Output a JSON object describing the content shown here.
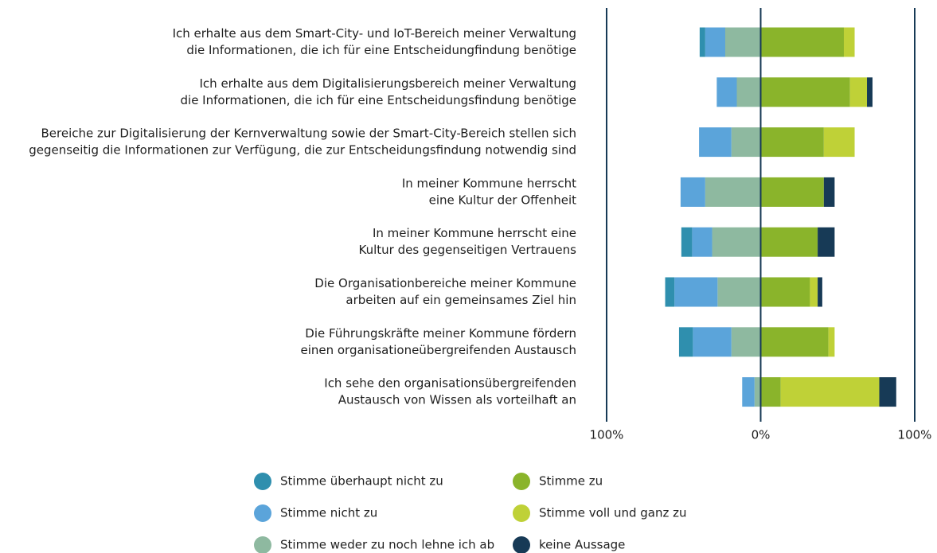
{
  "chart_data": {
    "type": "diverging_bar",
    "categories": [
      [
        "Ich erhalte aus dem Smart-City- und IoT-Bereich meiner Verwaltung",
        "die Informationen, die ich für eine Entscheidungfindung benötige"
      ],
      [
        "Ich erhalte aus dem Digitalisierungsbereich meiner Verwaltung",
        "die Informationen, die ich für eine Entscheidungsfindung benötige"
      ],
      [
        "Bereiche zur Digitalisierung der Kernverwaltung sowie der Smart-City-Bereich stellen sich",
        "gegenseitig die Informationen zur Verfügung, die zur Entscheidungsfindung notwendig sind"
      ],
      [
        "In meiner Kommune herrscht",
        "eine Kultur der Offenheit"
      ],
      [
        "In meiner Kommune herrscht eine",
        "Kultur des gegenseitigen Vertrauens"
      ],
      [
        "Die Organisationbereiche meiner Kommune",
        "arbeiten auf ein gemeinsames Ziel hin"
      ],
      [
        "Die Führungskräfte meiner Kommune fördern",
        "einen organisationeübergreifenden Austausch"
      ],
      [
        "Ich sehe den organisationsübergreifenden",
        "Austausch von Wissen als vorteilhaft an"
      ]
    ],
    "series": [
      {
        "name": "Stimme überhaupt nicht zu",
        "color": "#2f8fae",
        "values": [
          -3.6,
          0,
          0,
          0,
          -7,
          -6,
          -9,
          0
        ]
      },
      {
        "name": "Stimme nicht zu",
        "color": "#5ba4da",
        "values": [
          -13,
          -13,
          -21,
          -16,
          -13,
          -28,
          -25,
          -8
        ]
      },
      {
        "name": "Stimme weder zu noch lehne ich ab",
        "color": "#8eb9a0",
        "values": [
          -23,
          -15.5,
          -19,
          -36,
          -31.5,
          -28,
          -19,
          -4
        ]
      },
      {
        "name": "Stimme zu",
        "color": "#8ab42b",
        "values": [
          54,
          58,
          41,
          41,
          37,
          32,
          44,
          13
        ]
      },
      {
        "name": "Stimme voll und ganz zu",
        "color": "#bfd137",
        "values": [
          7,
          11,
          20,
          0,
          0,
          5,
          4,
          64
        ]
      },
      {
        "name": "keine Aussage",
        "color": "#173a56",
        "values": [
          0,
          3.6,
          0,
          7,
          11,
          3,
          0,
          11
        ]
      }
    ],
    "xlim": [
      -100,
      100
    ],
    "xticks": [
      {
        "value": -100,
        "label": "100%"
      },
      {
        "value": 0,
        "label": "0%"
      },
      {
        "value": 100,
        "label": "100%"
      }
    ],
    "grid": true
  }
}
